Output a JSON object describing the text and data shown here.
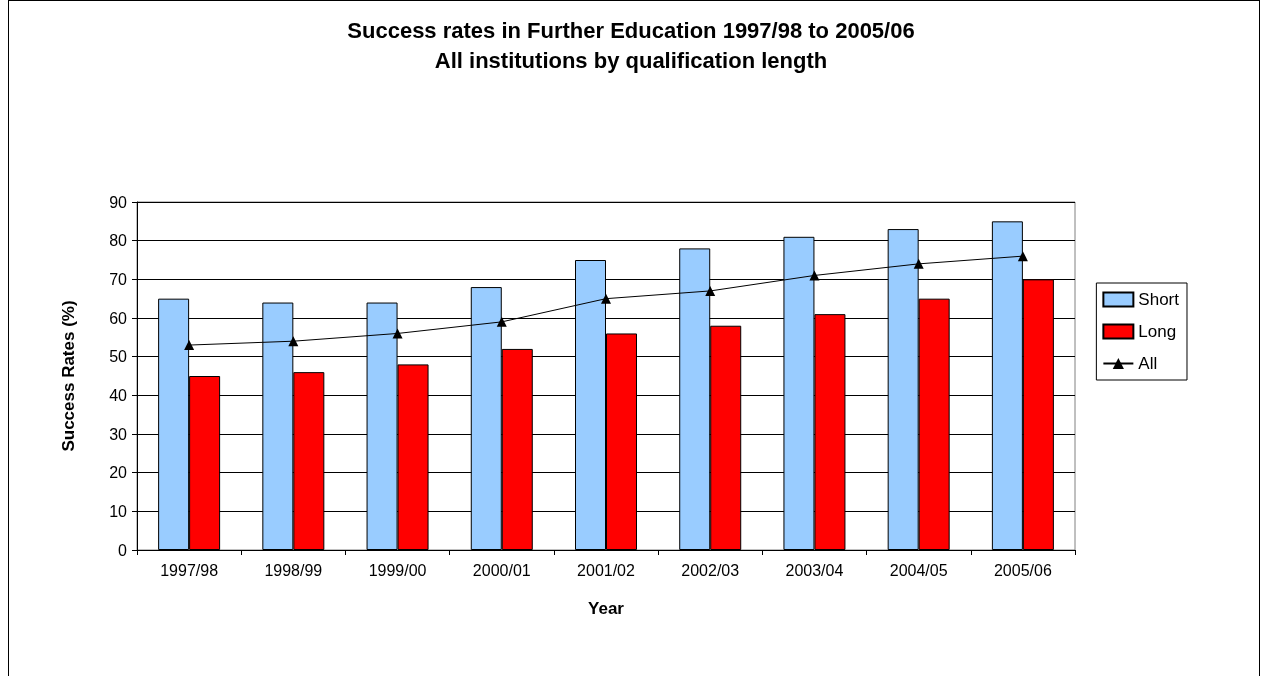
{
  "chart_data": {
    "type": "bar",
    "title": "Success rates in Further Education 1997/98 to 2005/06",
    "subtitle": "All institutions by qualification length",
    "xlabel": "Year",
    "ylabel": "Success Rates (%)",
    "categories": [
      "1997/98",
      "1998/99",
      "1999/00",
      "2000/01",
      "2001/02",
      "2002/03",
      "2003/04",
      "2004/05",
      "2005/06"
    ],
    "series": [
      {
        "name": "Short",
        "color": "#99ccff",
        "values": [
          65,
          64,
          64,
          68,
          75,
          78,
          81,
          83,
          85
        ]
      },
      {
        "name": "Long",
        "color": "#ff0000",
        "values": [
          45,
          46,
          48,
          52,
          56,
          58,
          61,
          65,
          70
        ]
      },
      {
        "name": "All",
        "type": "line",
        "color": "#000000",
        "values": [
          53,
          54,
          56,
          59,
          65,
          67,
          71,
          74,
          76
        ]
      }
    ],
    "ylim": [
      0,
      90
    ],
    "yticks": [
      0,
      10,
      20,
      30,
      40,
      50,
      60,
      70,
      80,
      90
    ],
    "grid": "y",
    "legend": "right",
    "marker": "triangle",
    "line_style": "solid"
  }
}
